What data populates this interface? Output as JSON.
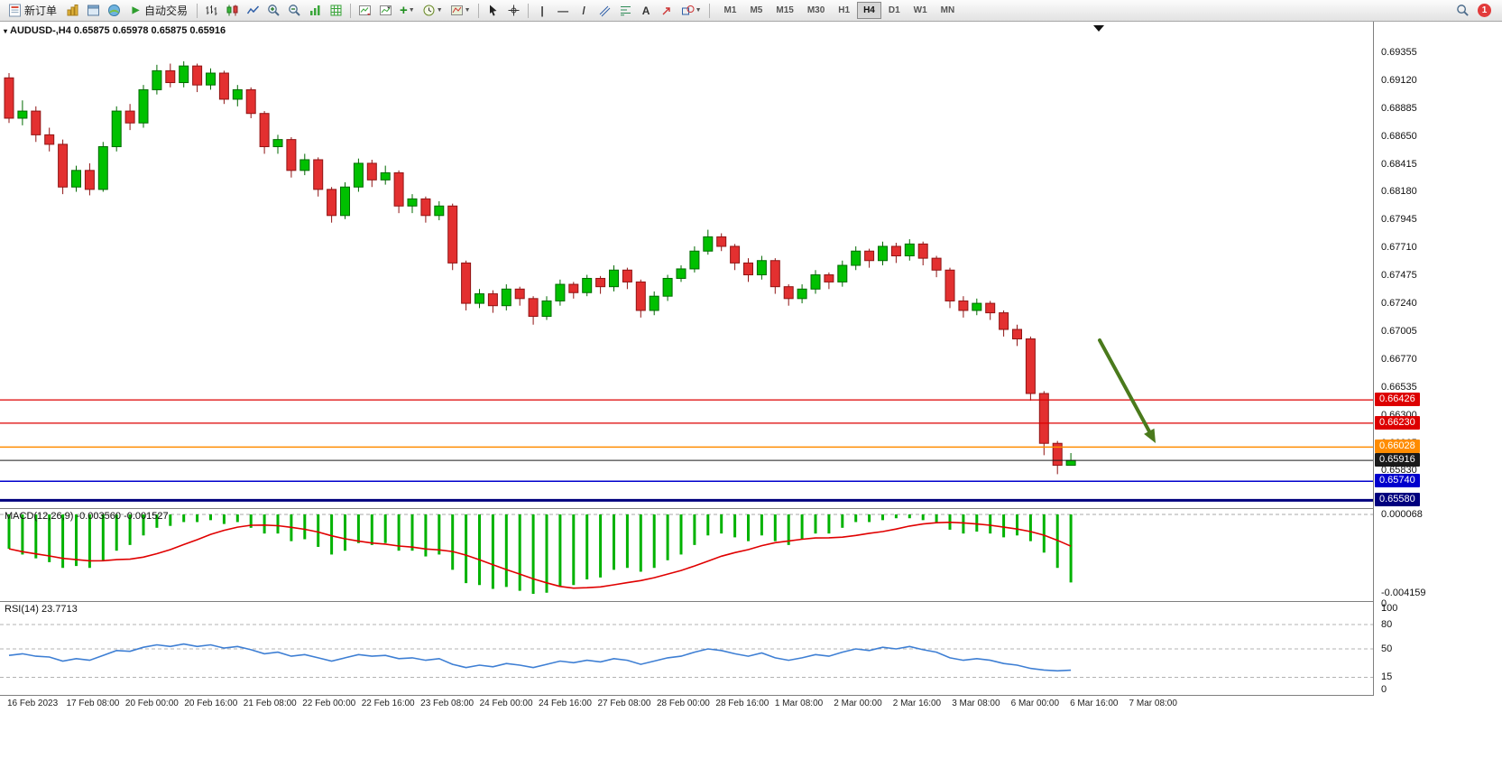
{
  "ui": {
    "toolbar": {
      "new_order_label": "新订单",
      "auto_trading_label": "自动交易",
      "glyphs": {
        "play": "▶",
        "caret": "▼",
        "plus": "+",
        "minus": "−",
        "vertical_line": "|",
        "horizontal_line": "—",
        "trendline": "/",
        "text_tool": "A",
        "symbol_marker": "▾"
      },
      "timeframes": [
        "M1",
        "M5",
        "M15",
        "M30",
        "H1",
        "H4",
        "D1",
        "W1",
        "MN"
      ],
      "active_timeframe": "H4",
      "notification_count": "1"
    }
  },
  "chart": {
    "symbol_info": "AUDUSD-,H4  0.65875 0.65978 0.65875 0.65916"
  },
  "chart_data": {
    "type": "candlestick",
    "title": "AUDUSD- H4",
    "symbol": "AUDUSD-",
    "period": "H4",
    "current_ohlc": {
      "open": 0.65875,
      "high": 0.65978,
      "low": 0.65875,
      "close": 0.65916
    },
    "price_axis_labels": [
      "0.69355",
      "0.69120",
      "0.68885",
      "0.68650",
      "0.68415",
      "0.68180",
      "0.67945",
      "0.67710",
      "0.67475",
      "0.67240",
      "0.67005",
      "0.66770",
      "0.66535",
      "0.66300",
      "0.66065",
      "0.65830"
    ],
    "time_axis_labels": [
      "16 Feb 2023",
      "17 Feb 08:00",
      "20 Feb 00:00",
      "20 Feb 16:00",
      "21 Feb 08:00",
      "22 Feb 00:00",
      "22 Feb 16:00",
      "23 Feb 08:00",
      "24 Feb 00:00",
      "24 Feb 16:00",
      "27 Feb 08:00",
      "28 Feb 00:00",
      "28 Feb 16:00",
      "1 Mar 08:00",
      "2 Mar 00:00",
      "2 Mar 16:00",
      "3 Mar 08:00",
      "6 Mar 00:00",
      "6 Mar 16:00",
      "7 Mar 08:00"
    ],
    "ohlc": [
      [
        0.6914,
        0.6918,
        0.6876,
        0.688
      ],
      [
        0.688,
        0.6895,
        0.6874,
        0.6886
      ],
      [
        0.6886,
        0.689,
        0.686,
        0.6866
      ],
      [
        0.6866,
        0.6872,
        0.6852,
        0.6858
      ],
      [
        0.6858,
        0.6862,
        0.6816,
        0.6822
      ],
      [
        0.6822,
        0.684,
        0.6818,
        0.6836
      ],
      [
        0.6836,
        0.6842,
        0.6815,
        0.682
      ],
      [
        0.682,
        0.686,
        0.6818,
        0.6856
      ],
      [
        0.6856,
        0.689,
        0.6852,
        0.6886
      ],
      [
        0.6886,
        0.6892,
        0.687,
        0.6876
      ],
      [
        0.6876,
        0.6908,
        0.6872,
        0.6904
      ],
      [
        0.6904,
        0.6925,
        0.69,
        0.692
      ],
      [
        0.692,
        0.6926,
        0.6906,
        0.691
      ],
      [
        0.691,
        0.6928,
        0.6906,
        0.6924
      ],
      [
        0.6924,
        0.6926,
        0.6902,
        0.6908
      ],
      [
        0.6908,
        0.6922,
        0.6904,
        0.6918
      ],
      [
        0.6918,
        0.692,
        0.6892,
        0.6896
      ],
      [
        0.6896,
        0.6908,
        0.689,
        0.6904
      ],
      [
        0.6904,
        0.6906,
        0.688,
        0.6884
      ],
      [
        0.6884,
        0.6886,
        0.685,
        0.6856
      ],
      [
        0.6856,
        0.6866,
        0.685,
        0.6862
      ],
      [
        0.6862,
        0.6864,
        0.683,
        0.6836
      ],
      [
        0.6836,
        0.685,
        0.6832,
        0.6845
      ],
      [
        0.6845,
        0.6847,
        0.6814,
        0.682
      ],
      [
        0.682,
        0.6822,
        0.6792,
        0.6798
      ],
      [
        0.6798,
        0.6826,
        0.6795,
        0.6822
      ],
      [
        0.6822,
        0.6846,
        0.6818,
        0.6842
      ],
      [
        0.6842,
        0.6845,
        0.6822,
        0.6828
      ],
      [
        0.6828,
        0.684,
        0.6824,
        0.6834
      ],
      [
        0.6834,
        0.6836,
        0.68,
        0.6806
      ],
      [
        0.6806,
        0.6816,
        0.68,
        0.6812
      ],
      [
        0.6812,
        0.6814,
        0.6792,
        0.6798
      ],
      [
        0.6798,
        0.681,
        0.6794,
        0.6806
      ],
      [
        0.6806,
        0.6808,
        0.6752,
        0.6758
      ],
      [
        0.6758,
        0.676,
        0.6718,
        0.6724
      ],
      [
        0.6724,
        0.6736,
        0.672,
        0.6732
      ],
      [
        0.6732,
        0.6735,
        0.6716,
        0.6722
      ],
      [
        0.6722,
        0.674,
        0.6718,
        0.6736
      ],
      [
        0.6736,
        0.6738,
        0.6722,
        0.6728
      ],
      [
        0.6728,
        0.673,
        0.6706,
        0.6713
      ],
      [
        0.6713,
        0.673,
        0.671,
        0.6726
      ],
      [
        0.6726,
        0.6744,
        0.6722,
        0.674
      ],
      [
        0.674,
        0.6742,
        0.6728,
        0.6733
      ],
      [
        0.6733,
        0.6748,
        0.673,
        0.6745
      ],
      [
        0.6745,
        0.6747,
        0.6732,
        0.6738
      ],
      [
        0.6738,
        0.6756,
        0.6734,
        0.6752
      ],
      [
        0.6752,
        0.6754,
        0.6736,
        0.6742
      ],
      [
        0.6742,
        0.6744,
        0.6712,
        0.6718
      ],
      [
        0.6718,
        0.6734,
        0.6714,
        0.673
      ],
      [
        0.673,
        0.6748,
        0.6726,
        0.6745
      ],
      [
        0.6745,
        0.6756,
        0.6742,
        0.6753
      ],
      [
        0.6753,
        0.6772,
        0.675,
        0.6768
      ],
      [
        0.6768,
        0.6786,
        0.6765,
        0.678
      ],
      [
        0.678,
        0.6783,
        0.6768,
        0.6772
      ],
      [
        0.6772,
        0.6774,
        0.6752,
        0.6758
      ],
      [
        0.6758,
        0.6762,
        0.6742,
        0.6748
      ],
      [
        0.6748,
        0.6764,
        0.6744,
        0.676
      ],
      [
        0.676,
        0.6762,
        0.6732,
        0.6738
      ],
      [
        0.6738,
        0.674,
        0.6722,
        0.6728
      ],
      [
        0.6728,
        0.674,
        0.6724,
        0.6736
      ],
      [
        0.6736,
        0.6752,
        0.6732,
        0.6748
      ],
      [
        0.6748,
        0.675,
        0.6736,
        0.6742
      ],
      [
        0.6742,
        0.676,
        0.6738,
        0.6756
      ],
      [
        0.6756,
        0.6772,
        0.6752,
        0.6768
      ],
      [
        0.6768,
        0.677,
        0.6754,
        0.676
      ],
      [
        0.676,
        0.6776,
        0.6756,
        0.6772
      ],
      [
        0.6772,
        0.6775,
        0.6758,
        0.6764
      ],
      [
        0.6764,
        0.6778,
        0.676,
        0.6774
      ],
      [
        0.6774,
        0.6776,
        0.6756,
        0.6762
      ],
      [
        0.6762,
        0.6764,
        0.6746,
        0.6752
      ],
      [
        0.6752,
        0.6754,
        0.672,
        0.6726
      ],
      [
        0.6726,
        0.673,
        0.6712,
        0.6718
      ],
      [
        0.6718,
        0.6728,
        0.6714,
        0.6724
      ],
      [
        0.6724,
        0.6726,
        0.671,
        0.6716
      ],
      [
        0.6716,
        0.6718,
        0.6696,
        0.6702
      ],
      [
        0.6702,
        0.6706,
        0.6688,
        0.6694
      ],
      [
        0.6694,
        0.6696,
        0.6642,
        0.6648
      ],
      [
        0.6648,
        0.665,
        0.6596,
        0.6606
      ],
      [
        0.6606,
        0.6608,
        0.658,
        0.65875
      ],
      [
        0.65875,
        0.65978,
        0.65875,
        0.65916
      ]
    ],
    "horizontal_lines": [
      {
        "price": 0.66426,
        "label": "0.66426",
        "color": "#dd0000",
        "width": 1.2
      },
      {
        "price": 0.6623,
        "label": "0.66230",
        "color": "#dd0000",
        "width": 1.2
      },
      {
        "price": 0.66028,
        "label": "0.66028",
        "color": "#ff8c00",
        "width": 1.5
      },
      {
        "price": 0.65916,
        "label": "0.65916",
        "color": "#1a1a1a",
        "width": 1,
        "role": "bid-price"
      },
      {
        "price": 0.6574,
        "label": "0.65740",
        "color": "#0000cd",
        "width": 1.5
      },
      {
        "price": 0.6558,
        "label": "0.65580",
        "color": "#00007e",
        "width": 3
      }
    ],
    "indicators": {
      "macd": {
        "label": "MACD(12,26,9) -0.003560 -0.001527",
        "axis_labels": [
          "0.000068",
          "-0.004159",
          "0"
        ],
        "histogram_color": "#00b200",
        "signal_color": "#e00000",
        "histogram": [
          -0.0018,
          -0.0021,
          -0.0023,
          -0.0025,
          -0.0028,
          -0.0027,
          -0.0028,
          -0.0024,
          -0.0019,
          -0.0016,
          -0.0011,
          -0.0007,
          -0.0006,
          -0.0004,
          -0.0004,
          -0.0003,
          -0.0005,
          -0.0004,
          -0.0007,
          -0.001,
          -0.001,
          -0.0014,
          -0.0013,
          -0.0017,
          -0.0021,
          -0.0019,
          -0.0015,
          -0.0016,
          -0.0015,
          -0.0019,
          -0.0019,
          -0.0022,
          -0.0021,
          -0.0029,
          -0.0036,
          -0.0037,
          -0.0039,
          -0.0038,
          -0.004,
          -0.004159,
          -0.0041,
          -0.0038,
          -0.0037,
          -0.0034,
          -0.0033,
          -0.0029,
          -0.0028,
          -0.003,
          -0.0028,
          -0.0024,
          -0.0021,
          -0.0016,
          -0.0011,
          -0.001,
          -0.0012,
          -0.0014,
          -0.0011,
          -0.0014,
          -0.0016,
          -0.0013,
          -0.001,
          -0.001,
          -0.0007,
          -0.0004,
          -0.0004,
          -0.0003,
          -0.0002,
          -0.0002,
          -0.0003,
          -0.0004,
          -0.0008,
          -0.001,
          -0.0009,
          -0.001,
          -0.0012,
          -0.0011,
          -0.0014,
          -0.002,
          -0.0028,
          -0.00356
        ]
      },
      "rsi": {
        "label": "RSI(14) 23.7713",
        "axis_labels": [
          "100",
          "80",
          "50",
          "15",
          "0"
        ],
        "levels": [
          80,
          50,
          15
        ],
        "line_color": "#3e7fd4",
        "values": [
          42,
          44,
          41,
          40,
          35,
          38,
          36,
          42,
          48,
          47,
          52,
          55,
          53,
          56,
          53,
          55,
          51,
          53,
          49,
          44,
          46,
          41,
          43,
          39,
          35,
          39,
          43,
          41,
          42,
          38,
          39,
          36,
          38,
          31,
          27,
          30,
          28,
          32,
          30,
          27,
          31,
          35,
          33,
          36,
          34,
          38,
          36,
          31,
          35,
          39,
          41,
          46,
          50,
          48,
          44,
          41,
          45,
          39,
          36,
          39,
          43,
          41,
          46,
          50,
          48,
          52,
          50,
          53,
          49,
          46,
          39,
          36,
          38,
          36,
          32,
          30,
          26,
          24,
          23,
          23.77
        ]
      }
    },
    "annotations": [
      {
        "type": "arrow",
        "direction": "down-right",
        "color": "#4a7a1c",
        "from_price": 0.6693,
        "to_price": 0.6607
      }
    ],
    "style": {
      "bull_color": "#00c000",
      "bull_border": "#006a00",
      "bear_color": "#e33030",
      "bear_border": "#8f1414",
      "background": "#ffffff"
    }
  }
}
